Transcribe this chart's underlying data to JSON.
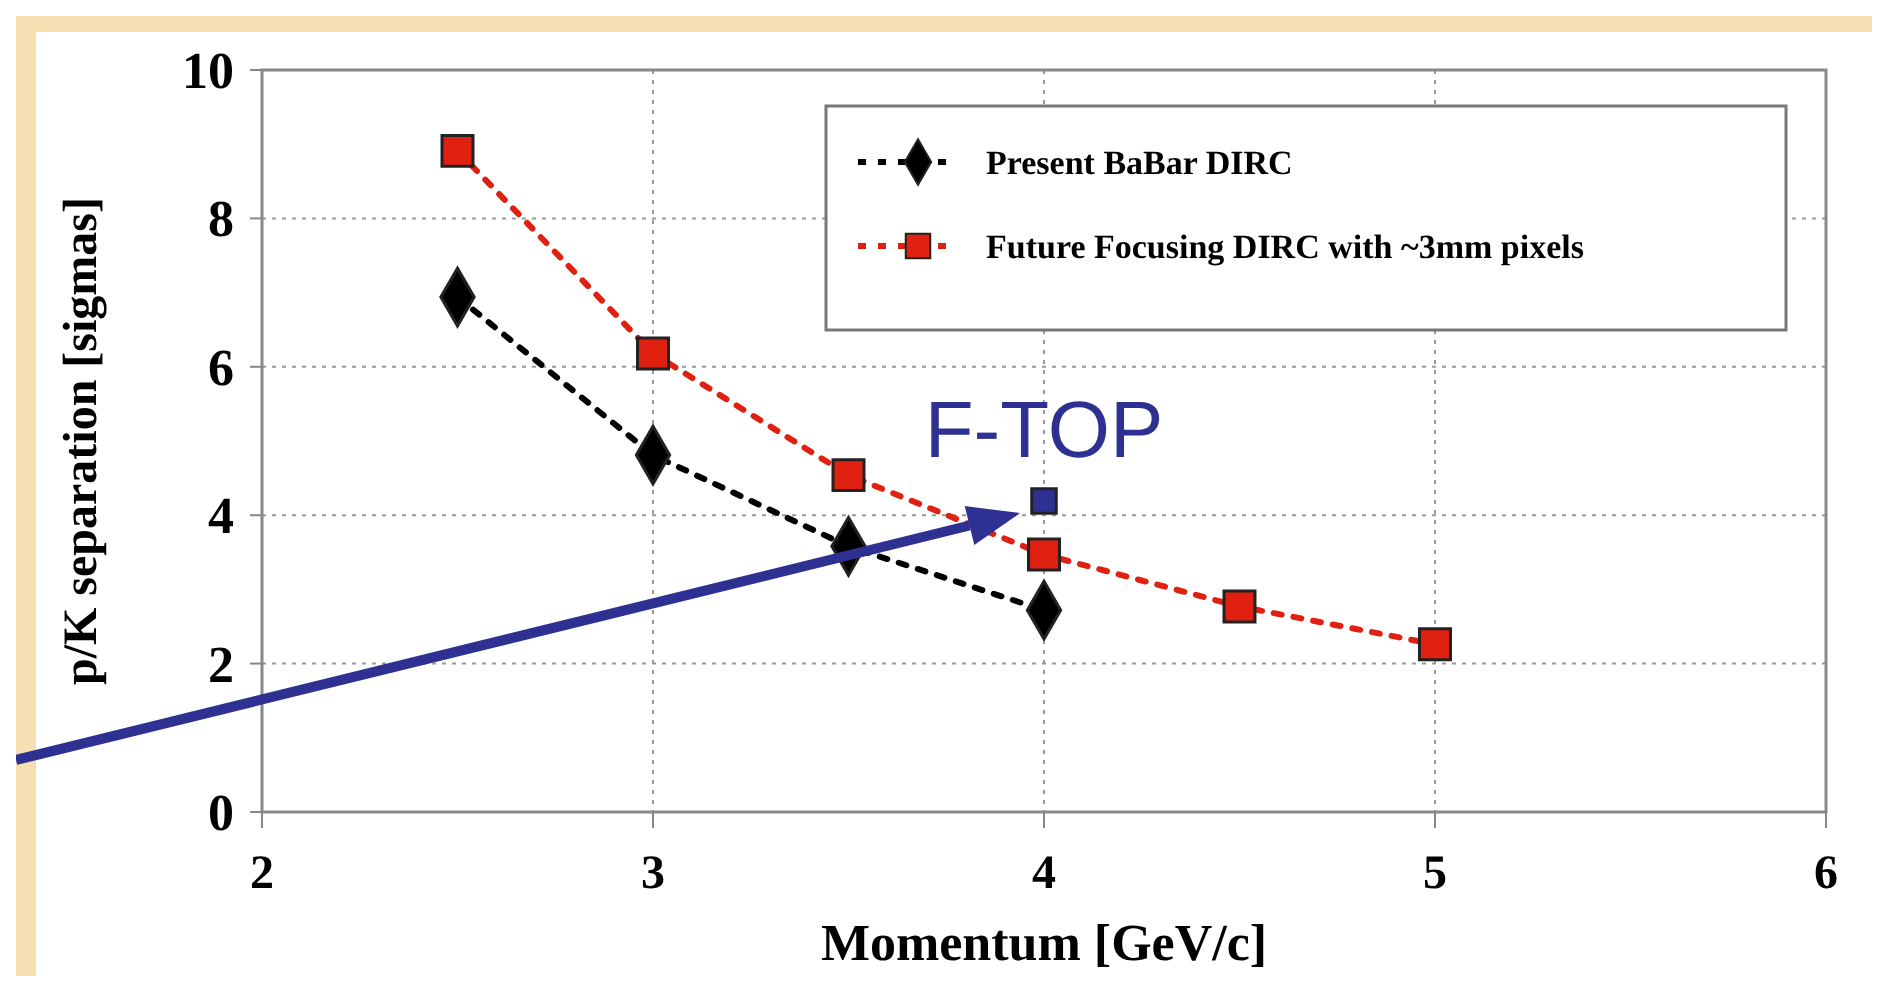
{
  "chart_data": {
    "type": "line",
    "xlabel": "Momentum [GeV/c]",
    "ylabel": "p/K separation [sigmas]",
    "xlim": [
      2,
      6
    ],
    "xticks": [
      2,
      3,
      4,
      5,
      6
    ],
    "ylim": [
      0,
      10
    ],
    "yticks": [
      0,
      2,
      4,
      6,
      8,
      10
    ],
    "grid": true,
    "legend": "top right",
    "line_style": "dotted",
    "series": [
      {
        "name": "Present BaBar DIRC",
        "color": "#000000",
        "marker": "diamond",
        "x": [
          2.5,
          3,
          3.5,
          4
        ],
        "values": [
          6.94,
          4.81,
          3.58,
          2.72
        ]
      },
      {
        "name": "Future Focusing DIRC with ~3mm pixels",
        "color": "#e02010",
        "marker": "square",
        "x": [
          2.5,
          3,
          3.5,
          4,
          4.5,
          5
        ],
        "values": [
          8.91,
          6.18,
          4.54,
          3.47,
          2.77,
          2.26
        ]
      },
      {
        "type": "scatter",
        "color": "#2e3192",
        "marker": "square",
        "x": [
          4
        ],
        "values": [
          4.19
        ]
      }
    ],
    "annotations": [
      {
        "text": "F-TOP",
        "x": 4,
        "y": 4.19
      }
    ]
  }
}
